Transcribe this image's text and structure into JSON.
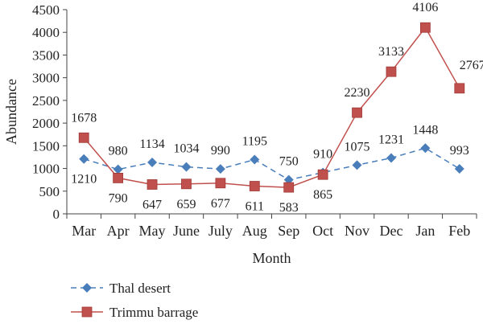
{
  "chart_data": {
    "type": "line",
    "title": "",
    "xlabel": "Month",
    "ylabel": "Abundance",
    "ylim": [
      0,
      4500
    ],
    "yticks": [
      0,
      500,
      1000,
      1500,
      2000,
      2500,
      3000,
      3500,
      4000,
      4500
    ],
    "categories": [
      "Mar",
      "Apr",
      "May",
      "June",
      "July",
      "Aug",
      "Sep",
      "Oct",
      "Nov",
      "Dec",
      "Jan",
      "Feb"
    ],
    "grid": false,
    "legend_position": "bottom-left",
    "series": [
      {
        "name": "Thal desert",
        "color": "#4a7ebb",
        "marker": "diamond",
        "dash": true,
        "values": [
          1210,
          980,
          1134,
          1034,
          990,
          1195,
          750,
          910,
          1075,
          1231,
          1448,
          993
        ]
      },
      {
        "name": "Trimmu barrage",
        "color": "#c0504d",
        "marker": "square",
        "dash": false,
        "values": [
          1678,
          790,
          647,
          659,
          677,
          611,
          583,
          865,
          2230,
          3133,
          4106,
          2767
        ]
      }
    ]
  }
}
